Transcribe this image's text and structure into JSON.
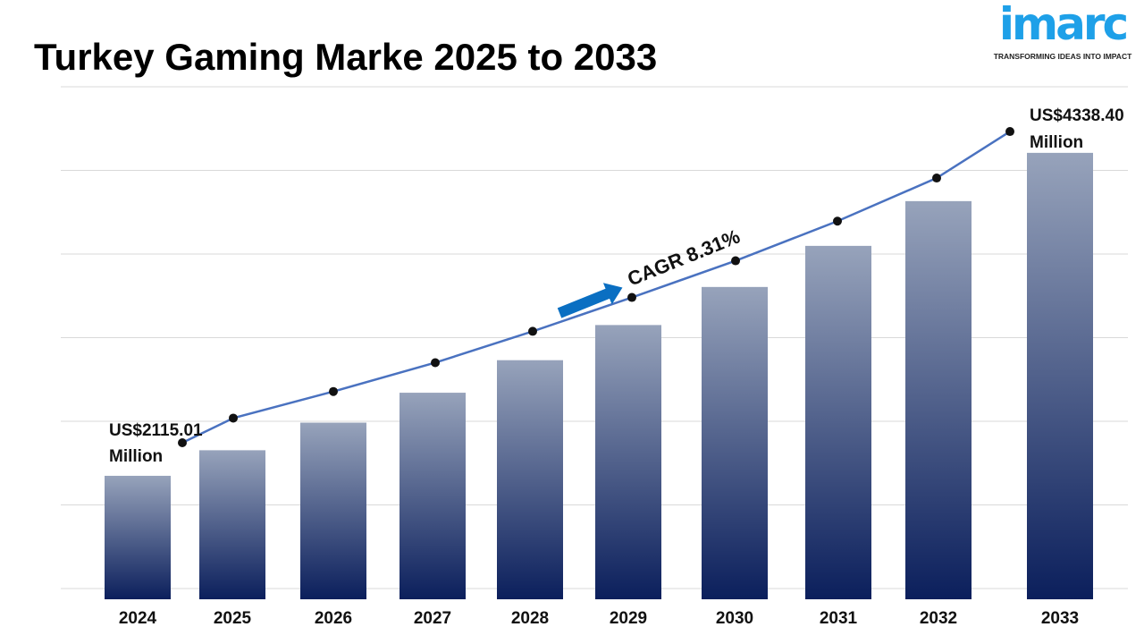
{
  "title": "Turkey Gaming Marke 2025 to 2033",
  "logo": {
    "name": "imarc",
    "tagline": "TRANSFORMING IDEAS INTO IMPACT"
  },
  "colors": {
    "bar_top": "#97a3bb",
    "bar_bottom": "#0b1f5c",
    "line": "#4a72c0",
    "arrow": "#0a6fc2",
    "logo": "#1ea0e8"
  },
  "chart_data": {
    "type": "bar",
    "title": "Turkey Gaming Marke 2025 to 2033",
    "categories": [
      "2024",
      "2025",
      "2026",
      "2027",
      "2028",
      "2029",
      "2030",
      "2031",
      "2032",
      "2033"
    ],
    "values": [
      2115.01,
      2291,
      2481,
      2687,
      2911,
      3153,
      3415,
      3698,
      4006,
      4338.4
    ],
    "unit": "US$ Million",
    "overlay_line": true,
    "annotations": {
      "start_label_1": "US$2115.01",
      "start_label_2": "Million",
      "end_label_1": "US$4338.40",
      "end_label_2": "Million",
      "cagr": "CAGR 8.31%"
    },
    "grid": true,
    "xlabel": "",
    "ylabel": ""
  }
}
